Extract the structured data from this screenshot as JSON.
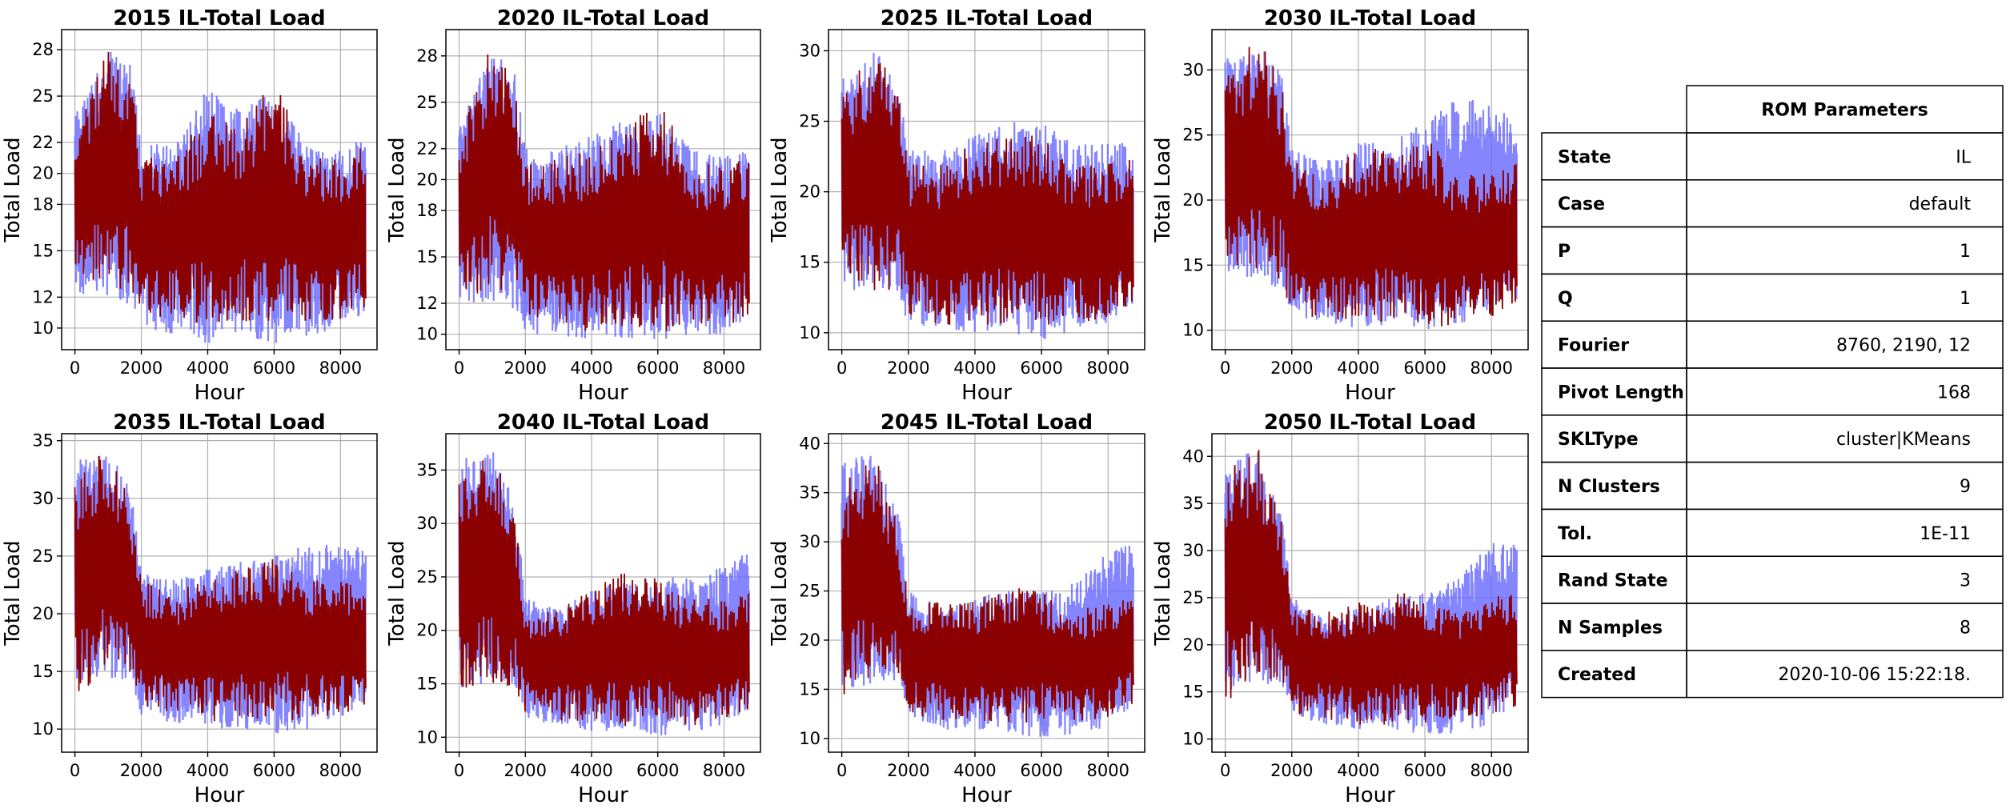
{
  "colors": {
    "envelope": "#6666ff",
    "sample": "#8b0000",
    "grid": "#b0b0b0"
  },
  "chart_data": [
    {
      "type": "line",
      "title": "2015 IL-Total Load",
      "xlabel": "Hour",
      "ylabel": "Total Load",
      "xlim": [
        -400,
        9100
      ],
      "ylim": [
        8.6,
        29.3
      ],
      "xticks": [
        0,
        2000,
        4000,
        6000,
        8000
      ],
      "yticks": [
        10,
        12,
        15,
        18,
        20,
        22,
        25,
        28
      ],
      "ytick_labels": [
        "10",
        "12",
        "15",
        "18",
        "20",
        "22",
        "25",
        "28"
      ],
      "grid": true,
      "series": [
        {
          "role": "envelope",
          "x": [
            0,
            1000,
            1700,
            2000,
            3000,
            4000,
            5000,
            6000,
            7000,
            8000,
            8760
          ],
          "low": [
            12,
            12,
            11.5,
            10,
            9.5,
            9,
            9.5,
            9,
            9.5,
            10,
            11
          ],
          "high": [
            24,
            28,
            27,
            22,
            22,
            25.5,
            24,
            25.5,
            22,
            21.5,
            22.5
          ]
        },
        {
          "role": "sample",
          "x": [
            0,
            1000,
            1700,
            2000,
            3000,
            4000,
            5000,
            6000,
            7000,
            8000,
            8760
          ],
          "low": [
            12.5,
            12.5,
            12,
            11,
            10.5,
            10,
            10.5,
            10,
            10.5,
            10.5,
            11
          ],
          "high": [
            23,
            28.5,
            26,
            21,
            21,
            24,
            23,
            26.5,
            21,
            21,
            22
          ]
        }
      ]
    },
    {
      "type": "line",
      "title": "2020 IL-Total Load",
      "xlabel": "Hour",
      "ylabel": "Total Load",
      "xlim": [
        -400,
        9100
      ],
      "ylim": [
        9.0,
        29.7
      ],
      "xticks": [
        0,
        2000,
        4000,
        6000,
        8000
      ],
      "yticks": [
        10,
        12,
        15,
        18,
        20,
        22,
        25,
        28
      ],
      "ytick_labels": [
        "10",
        "12",
        "15",
        "18",
        "20",
        "22",
        "25",
        "28"
      ],
      "grid": true,
      "series": [
        {
          "role": "envelope",
          "x": [
            0,
            1000,
            1700,
            2000,
            3000,
            4000,
            5000,
            6000,
            7000,
            8000,
            8760
          ],
          "low": [
            12,
            12,
            11.5,
            10,
            9.8,
            9.6,
            9.8,
            9.5,
            9.8,
            10,
            11
          ],
          "high": [
            24,
            28.5,
            27,
            22,
            22,
            23,
            24,
            24.5,
            22,
            21.5,
            22
          ]
        },
        {
          "role": "sample",
          "x": [
            0,
            1000,
            1700,
            2000,
            3000,
            4000,
            5000,
            6000,
            7000,
            8000,
            8760
          ],
          "low": [
            12.5,
            12.5,
            12,
            11,
            10.5,
            10,
            10.5,
            10,
            10.5,
            10.5,
            11
          ],
          "high": [
            23,
            29,
            26,
            21,
            21.5,
            22,
            23,
            25.5,
            21,
            21,
            21.5
          ]
        }
      ]
    },
    {
      "type": "line",
      "title": "2025 IL-Total Load",
      "xlabel": "Hour",
      "ylabel": "Total Load",
      "xlim": [
        -400,
        9100
      ],
      "ylim": [
        8.8,
        31.5
      ],
      "xticks": [
        0,
        2000,
        4000,
        6000,
        8000
      ],
      "yticks": [
        10,
        15,
        20,
        25,
        30
      ],
      "ytick_labels": [
        "10",
        "15",
        "20",
        "25",
        "30"
      ],
      "grid": true,
      "series": [
        {
          "role": "envelope",
          "x": [
            0,
            1000,
            1700,
            2000,
            3000,
            4000,
            5000,
            6000,
            7000,
            8000,
            8760
          ],
          "low": [
            13,
            13,
            12.5,
            10.5,
            10,
            10,
            10,
            9.5,
            10,
            10.5,
            11.5
          ],
          "high": [
            28,
            30,
            28,
            23,
            23,
            24,
            25,
            25,
            23.5,
            23.5,
            23.5
          ]
        },
        {
          "role": "sample",
          "x": [
            0,
            1000,
            1700,
            2000,
            3000,
            4000,
            5000,
            6000,
            7000,
            8000,
            8760
          ],
          "low": [
            13,
            13,
            13,
            11,
            10.5,
            10.5,
            10.5,
            10,
            10.5,
            11,
            12
          ],
          "high": [
            27,
            30.5,
            27,
            22,
            22,
            23.5,
            24,
            24,
            22,
            22,
            23
          ]
        }
      ]
    },
    {
      "type": "line",
      "title": "2030 IL-Total Load",
      "xlabel": "Hour",
      "ylabel": "Total Load",
      "xlim": [
        -400,
        9100
      ],
      "ylim": [
        8.5,
        33.1
      ],
      "xticks": [
        0,
        2000,
        4000,
        6000,
        8000
      ],
      "yticks": [
        10,
        15,
        20,
        25,
        30
      ],
      "ytick_labels": [
        "10",
        "15",
        "20",
        "25",
        "30"
      ],
      "grid": true,
      "series": [
        {
          "role": "envelope",
          "x": [
            0,
            1000,
            1700,
            2000,
            3000,
            4000,
            5000,
            6000,
            7000,
            8000,
            8760
          ],
          "low": [
            13.5,
            14,
            13,
            11,
            10.5,
            10,
            10.5,
            10,
            10.5,
            11,
            12
          ],
          "high": [
            31,
            32,
            30,
            24,
            23,
            24.5,
            24.5,
            26,
            28,
            28,
            26
          ]
        },
        {
          "role": "sample",
          "x": [
            0,
            1000,
            1700,
            2000,
            3000,
            4000,
            5000,
            6000,
            7000,
            8000,
            8760
          ],
          "low": [
            13,
            14,
            13.5,
            11,
            10.5,
            10.5,
            10.5,
            10,
            10.5,
            11,
            12
          ],
          "high": [
            30,
            32.5,
            29,
            23,
            22,
            24,
            24,
            25,
            22,
            22,
            23
          ]
        }
      ]
    },
    {
      "type": "line",
      "title": "2035 IL-Total Load",
      "xlabel": "Hour",
      "ylabel": "Total Load",
      "xlim": [
        -400,
        9100
      ],
      "ylim": [
        8.0,
        35.6
      ],
      "xticks": [
        0,
        2000,
        4000,
        6000,
        8000
      ],
      "yticks": [
        10,
        15,
        20,
        25,
        30,
        35
      ],
      "ytick_labels": [
        "10",
        "15",
        "20",
        "25",
        "30",
        "35"
      ],
      "grid": true,
      "series": [
        {
          "role": "envelope",
          "x": [
            0,
            1000,
            1700,
            2000,
            3000,
            4000,
            5000,
            6000,
            7000,
            8000,
            8760
          ],
          "low": [
            14,
            14.5,
            14,
            11,
            10.5,
            10,
            10,
            9.5,
            10,
            11,
            12
          ],
          "high": [
            33.5,
            34,
            31,
            24,
            23,
            24,
            24.5,
            25,
            26,
            26,
            26
          ]
        },
        {
          "role": "sample",
          "x": [
            0,
            1000,
            1700,
            2000,
            3000,
            4000,
            5000,
            6000,
            7000,
            8000,
            8760
          ],
          "low": [
            13,
            14.5,
            14.5,
            11.5,
            11,
            10.5,
            10.5,
            10.5,
            11,
            11,
            12
          ],
          "high": [
            32,
            34.5,
            30,
            23,
            22,
            23,
            24,
            25,
            23,
            23,
            23
          ]
        }
      ]
    },
    {
      "type": "line",
      "title": "2040 IL-Total Load",
      "xlabel": "Hour",
      "ylabel": "Total Load",
      "xlim": [
        -400,
        9100
      ],
      "ylim": [
        8.6,
        38.4
      ],
      "xticks": [
        0,
        2000,
        4000,
        6000,
        8000
      ],
      "yticks": [
        10,
        15,
        20,
        25,
        30,
        35
      ],
      "ytick_labels": [
        "10",
        "15",
        "20",
        "25",
        "30",
        "35"
      ],
      "grid": true,
      "series": [
        {
          "role": "envelope",
          "x": [
            0,
            1000,
            1700,
            2000,
            3000,
            4000,
            5000,
            6000,
            7000,
            8000,
            8760
          ],
          "low": [
            14.5,
            15,
            14.5,
            11.5,
            11,
            10.5,
            10.5,
            10,
            10.5,
            11,
            12.5
          ],
          "high": [
            36,
            37,
            32,
            23,
            22,
            24,
            24.5,
            25,
            25,
            26,
            27.5
          ]
        },
        {
          "role": "sample",
          "x": [
            0,
            1000,
            1700,
            2000,
            3000,
            4000,
            5000,
            6000,
            7000,
            8000,
            8760
          ],
          "low": [
            13.5,
            15,
            14.5,
            12,
            11.5,
            11,
            11,
            11,
            11,
            11.5,
            12.5
          ],
          "high": [
            34,
            37,
            31,
            22,
            22,
            24,
            25.5,
            25,
            23,
            23,
            23.5
          ]
        }
      ]
    },
    {
      "type": "line",
      "title": "2045 IL-Total Load",
      "xlabel": "Hour",
      "ylabel": "Total Load",
      "xlim": [
        -400,
        9100
      ],
      "ylim": [
        8.6,
        41.0
      ],
      "xticks": [
        0,
        2000,
        4000,
        6000,
        8000
      ],
      "yticks": [
        10,
        15,
        20,
        25,
        30,
        35,
        40
      ],
      "ytick_labels": [
        "10",
        "15",
        "20",
        "25",
        "30",
        "35",
        "40"
      ],
      "grid": true,
      "series": [
        {
          "role": "envelope",
          "x": [
            0,
            1000,
            1700,
            2000,
            3000,
            4000,
            5000,
            6000,
            7000,
            8000,
            8760
          ],
          "low": [
            15,
            15.5,
            15,
            12,
            11,
            10.5,
            10.5,
            10,
            10.5,
            11,
            13
          ],
          "high": [
            38.5,
            39,
            33,
            25,
            23,
            24.5,
            25,
            25,
            26,
            29,
            30
          ]
        },
        {
          "role": "sample",
          "x": [
            0,
            1000,
            1700,
            2000,
            3000,
            4000,
            5000,
            6000,
            7000,
            8000,
            8760
          ],
          "low": [
            14,
            15.5,
            15.5,
            12.5,
            11.5,
            11.5,
            11.5,
            11.5,
            11.5,
            12,
            13.5
          ],
          "high": [
            36,
            39,
            32,
            24,
            24,
            24,
            25.5,
            25,
            23,
            24,
            25
          ]
        }
      ]
    },
    {
      "type": "line",
      "title": "2050 IL-Total Load",
      "xlabel": "Hour",
      "ylabel": "Total Load",
      "xlim": [
        -400,
        9100
      ],
      "ylim": [
        8.6,
        42.4
      ],
      "xticks": [
        0,
        2000,
        4000,
        6000,
        8000
      ],
      "yticks": [
        10,
        15,
        20,
        25,
        30,
        35,
        40
      ],
      "ytick_labels": [
        "10",
        "15",
        "20",
        "25",
        "30",
        "35",
        "40"
      ],
      "grid": true,
      "series": [
        {
          "role": "envelope",
          "x": [
            0,
            1000,
            1700,
            2000,
            3000,
            4000,
            5000,
            6000,
            7000,
            8000,
            8760
          ],
          "low": [
            15,
            16,
            15.5,
            12.5,
            11.5,
            11,
            11,
            10.5,
            10.5,
            11.5,
            13.5
          ],
          "high": [
            40,
            40.5,
            34,
            25,
            23,
            24,
            25,
            25.5,
            27,
            31,
            31
          ]
        },
        {
          "role": "sample",
          "x": [
            0,
            1000,
            1700,
            2000,
            3000,
            4000,
            5000,
            6000,
            7000,
            8000,
            8760
          ],
          "low": [
            14,
            16,
            16,
            12.5,
            12,
            11.5,
            11.5,
            11.5,
            12,
            12.5,
            13.5
          ],
          "high": [
            39,
            41,
            33,
            24,
            24,
            24.5,
            25.5,
            25.5,
            23.5,
            25,
            26
          ]
        }
      ]
    }
  ],
  "params_table": {
    "header": "ROM Parameters",
    "rows": [
      {
        "key": "State",
        "value": "IL"
      },
      {
        "key": "Case",
        "value": "default"
      },
      {
        "key": "P",
        "value": "1"
      },
      {
        "key": "Q",
        "value": "1"
      },
      {
        "key": "Fourier",
        "value": "8760, 2190, 12"
      },
      {
        "key": "Pivot Length",
        "value": "168"
      },
      {
        "key": "SKLType",
        "value": "cluster|KMeans"
      },
      {
        "key": "N Clusters",
        "value": "9"
      },
      {
        "key": "Tol.",
        "value": "1E-11"
      },
      {
        "key": "Rand State",
        "value": "3"
      },
      {
        "key": "N Samples",
        "value": "8"
      },
      {
        "key": "Created",
        "value": "2020-10-06 15:22:18."
      }
    ]
  }
}
